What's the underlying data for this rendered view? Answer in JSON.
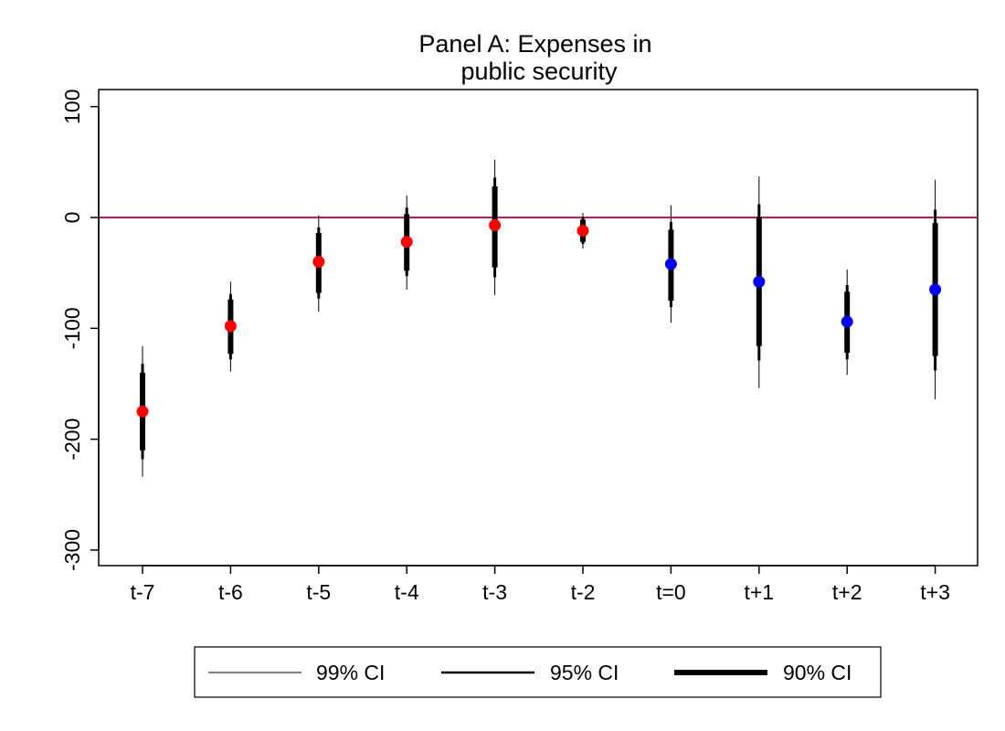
{
  "chart_data": {
    "type": "scatter",
    "title": [
      "Panel A: Expenses in",
      "public security"
    ],
    "xlabel": "",
    "ylabel": "",
    "categories": [
      "t-7",
      "t-6",
      "t-5",
      "t-4",
      "t-3",
      "t-2",
      "t=0",
      "t+1",
      "t+2",
      "t+3"
    ],
    "ylim": [
      -310,
      112
    ],
    "yticks": [
      100,
      0,
      -100,
      -200,
      -300
    ],
    "reference_line": {
      "y": 0,
      "color": "#c2185b"
    },
    "colors": {
      "pre": "#ff0000",
      "post": "#0000ff",
      "ci": "#000000"
    },
    "series": [
      {
        "name": "estimate",
        "points": [
          {
            "x": "t-7",
            "y": -175,
            "group": "pre",
            "ci90": [
              -210,
              -140
            ],
            "ci95": [
              -218,
              -132
            ],
            "ci99": [
              -234,
              -116
            ]
          },
          {
            "x": "t-6",
            "y": -98,
            "group": "pre",
            "ci90": [
              -123,
              -74
            ],
            "ci95": [
              -128,
              -69
            ],
            "ci99": [
              -139,
              -58
            ]
          },
          {
            "x": "t-5",
            "y": -40,
            "group": "pre",
            "ci90": [
              -68,
              -14
            ],
            "ci95": [
              -73,
              -9
            ],
            "ci99": [
              -85,
              2
            ]
          },
          {
            "x": "t-4",
            "y": -22,
            "group": "pre",
            "ci90": [
              -48,
              3
            ],
            "ci95": [
              -53,
              9
            ],
            "ci99": [
              -65,
              20
            ]
          },
          {
            "x": "t-3",
            "y": -7,
            "group": "pre",
            "ci90": [
              -45,
              28
            ],
            "ci95": [
              -54,
              36
            ],
            "ci99": [
              -70,
              52
            ]
          },
          {
            "x": "t-2",
            "y": -12,
            "group": "pre",
            "ci90": [
              -22,
              -2
            ],
            "ci95": [
              -24,
              0
            ],
            "ci99": [
              -28,
              4
            ]
          },
          {
            "x": "t=0",
            "y": -42,
            "group": "post",
            "ci90": [
              -75,
              -11
            ],
            "ci95": [
              -81,
              -4
            ],
            "ci99": [
              -95,
              11
            ]
          },
          {
            "x": "t+1",
            "y": -58,
            "group": "post",
            "ci90": [
              -116,
              0
            ],
            "ci95": [
              -129,
              12
            ],
            "ci99": [
              -154,
              37
            ]
          },
          {
            "x": "t+2",
            "y": -94,
            "group": "post",
            "ci90": [
              -122,
              -67
            ],
            "ci95": [
              -128,
              -61
            ],
            "ci99": [
              -142,
              -47
            ]
          },
          {
            "x": "t+3",
            "y": -65,
            "group": "post",
            "ci90": [
              -125,
              -5
            ],
            "ci95": [
              -138,
              7
            ],
            "ci99": [
              -164,
              34
            ]
          }
        ]
      }
    ],
    "legend": {
      "position": "bottom",
      "entries": [
        {
          "label": "99% CI",
          "style": "thin"
        },
        {
          "label": "95% CI",
          "style": "medium"
        },
        {
          "label": "90% CI",
          "style": "thick"
        }
      ]
    },
    "grid": false
  }
}
